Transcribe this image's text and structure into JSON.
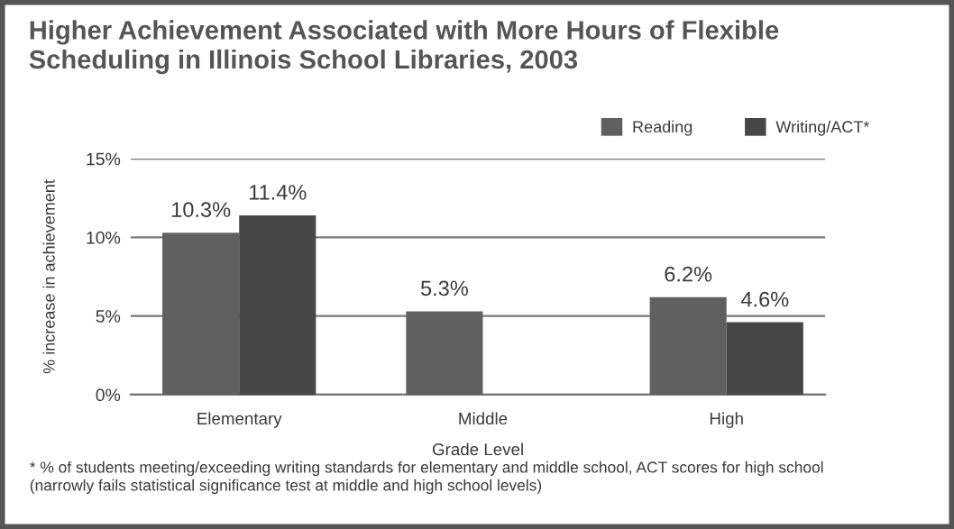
{
  "chart_data": {
    "type": "bar",
    "title": "Higher Achievement Associated with More Hours of Flexible\nScheduling in Illinois School Libraries, 2003",
    "xlabel": "Grade Level",
    "ylabel": "% increase in achievement",
    "categories": [
      "Elementary",
      "Middle",
      "High"
    ],
    "series": [
      {
        "name": "Reading",
        "color": "#606060",
        "values": [
          10.3,
          5.3,
          6.2
        ],
        "value_labels": [
          "10.3%",
          "5.3%",
          "6.2%"
        ]
      },
      {
        "name": "Writing/ACT*",
        "color": "#474747",
        "values": [
          11.4,
          null,
          4.6
        ],
        "value_labels": [
          "11.4%",
          null,
          "4.6%"
        ]
      }
    ],
    "ylim": [
      0,
      15
    ],
    "yticks": [
      {
        "value": 0,
        "label": "0%"
      },
      {
        "value": 5,
        "label": "5%"
      },
      {
        "value": 10,
        "label": "10%"
      },
      {
        "value": 15,
        "label": "15%"
      }
    ],
    "grid": "y",
    "legend": "top right",
    "annotations": [
      "* % of students meeting/exceeding writing standards for elementary and middle school, ACT scores for high school\n(narrowly fails statistical significance test at middle and high school levels)"
    ]
  }
}
